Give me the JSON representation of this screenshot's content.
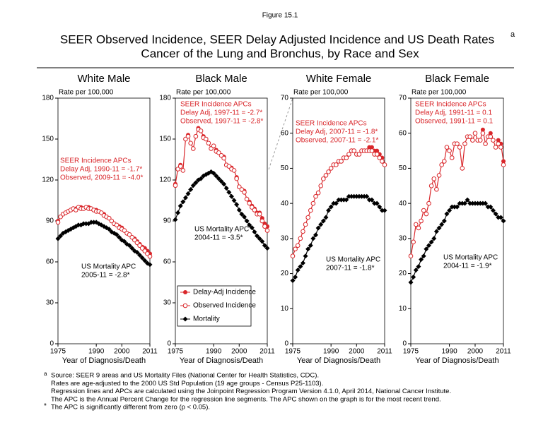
{
  "figure_label": "Figure 15.1",
  "title": {
    "line1": "SEER Observed Incidence, SEER Delay Adjusted Incidence and US Death Rates",
    "superscript": "a",
    "line2": "Cancer of the Lung and Bronchus, by Race and Sex"
  },
  "footnotes": [
    {
      "marker": "a",
      "lines": [
        "Source: SEER 9 areas and US Mortality Files (National Center for Health Statistics, CDC).",
        "Rates are age-adjusted to the 2000 US Std Population (19 age groups - Census P25-1103).",
        "Regression lines and APCs are calculated using the Joinpoint Regression Program Version 4.1.0, April 2014, National Cancer Institute.",
        "The APC is the Annual Percent Change for the regression line segments. The APC shown on the graph is for the most recent trend."
      ]
    },
    {
      "marker": "*",
      "lines": [
        "The APC is significantly different from zero (p < 0.05)."
      ]
    }
  ],
  "chart_data": [
    {
      "type": "line",
      "title": "White Male",
      "ylabel": "Rate per 100,000",
      "xlabel": "Year of Diagnosis/Death",
      "x": [
        1975,
        1976,
        1977,
        1978,
        1979,
        1980,
        1981,
        1982,
        1983,
        1984,
        1985,
        1986,
        1987,
        1988,
        1989,
        1990,
        1991,
        1992,
        1993,
        1994,
        1995,
        1996,
        1997,
        1998,
        1999,
        2000,
        2001,
        2002,
        2003,
        2004,
        2005,
        2006,
        2007,
        2008,
        2009,
        2010,
        2011
      ],
      "xlim": [
        1975,
        2011
      ],
      "xticks": [
        1975,
        1990,
        2000,
        2011
      ],
      "ylim": [
        0,
        180
      ],
      "yticks": [
        0,
        30,
        60,
        90,
        120,
        150,
        180
      ],
      "series": [
        {
          "name": "Delay-Adj Incidence",
          "color": "#d9262a",
          "marker": "filled-circle",
          "line": true,
          "values": [
            90,
            93,
            95,
            96,
            97,
            98,
            99,
            99,
            100,
            100,
            99,
            100,
            100,
            99,
            98,
            98,
            97,
            96,
            95,
            93,
            92,
            90,
            88,
            87,
            86,
            85,
            83,
            81,
            80,
            78,
            77,
            75,
            73,
            71,
            70,
            68,
            66
          ]
        },
        {
          "name": "Observed Incidence",
          "color": "#d9262a",
          "marker": "open-circle",
          "line": false,
          "values": [
            89,
            93,
            95,
            96,
            97,
            98,
            99,
            98,
            100,
            99,
            99,
            100,
            99,
            99,
            98,
            97,
            97,
            96,
            94,
            93,
            92,
            90,
            88,
            87,
            85,
            84,
            83,
            81,
            80,
            78,
            76,
            74,
            72,
            70,
            68,
            66,
            64
          ]
        },
        {
          "name": "Mortality",
          "color": "#000000",
          "marker": "diamond",
          "line": true,
          "values": [
            77,
            79,
            81,
            82,
            83,
            84,
            85,
            86,
            87,
            87,
            88,
            88,
            88,
            89,
            89,
            89,
            88,
            87,
            86,
            85,
            84,
            82,
            81,
            80,
            78,
            76,
            75,
            73,
            72,
            70,
            68,
            67,
            65,
            63,
            61,
            59,
            58
          ]
        }
      ],
      "incidence_note": [
        "SEER Incidence APCs",
        "Delay Adj, 1990-11 = -1.7*",
        "Observed, 2009-11 = -4.0*"
      ],
      "mortality_note": [
        "US Mortality APC",
        "2005-11 = -2.8*"
      ]
    },
    {
      "type": "line",
      "title": "Black Male",
      "ylabel": "Rate per 100,000",
      "xlabel": "Year of Diagnosis/Death",
      "x": [
        1975,
        1976,
        1977,
        1978,
        1979,
        1980,
        1981,
        1982,
        1983,
        1984,
        1985,
        1986,
        1987,
        1988,
        1989,
        1990,
        1991,
        1992,
        1993,
        1994,
        1995,
        1996,
        1997,
        1998,
        1999,
        2000,
        2001,
        2002,
        2003,
        2004,
        2005,
        2006,
        2007,
        2008,
        2009,
        2010,
        2011
      ],
      "xlim": [
        1975,
        2011
      ],
      "xticks": [
        1975,
        1990,
        2000,
        2011
      ],
      "ylim": [
        0,
        180
      ],
      "yticks": [
        0,
        30,
        60,
        90,
        120,
        150,
        180
      ],
      "legend": "lower-left",
      "series": [
        {
          "name": "Delay-Adj Incidence",
          "color": "#d9262a",
          "marker": "filled-circle",
          "line": true,
          "values": [
            117,
            128,
            131,
            127,
            150,
            153,
            147,
            143,
            152,
            158,
            156,
            152,
            150,
            147,
            143,
            145,
            142,
            140,
            138,
            137,
            131,
            130,
            129,
            127,
            122,
            115,
            113,
            112,
            106,
            104,
            101,
            99,
            96,
            96,
            92,
            88,
            86
          ]
        },
        {
          "name": "Observed Incidence",
          "color": "#d9262a",
          "marker": "open-circle",
          "line": false,
          "values": [
            116,
            128,
            130,
            127,
            150,
            152,
            147,
            143,
            152,
            157,
            156,
            151,
            150,
            147,
            143,
            145,
            141,
            140,
            138,
            136,
            131,
            130,
            128,
            127,
            121,
            115,
            113,
            111,
            106,
            103,
            100,
            98,
            95,
            95,
            90,
            86,
            83
          ]
        },
        {
          "name": "Mortality",
          "color": "#000000",
          "marker": "diamond",
          "line": true,
          "values": [
            91,
            96,
            101,
            104,
            107,
            110,
            113,
            116,
            118,
            120,
            121,
            123,
            124,
            125,
            126,
            125,
            123,
            121,
            119,
            117,
            114,
            111,
            108,
            105,
            102,
            98,
            95,
            93,
            90,
            87,
            85,
            82,
            79,
            77,
            75,
            72,
            70
          ]
        }
      ],
      "incidence_note": [
        "SEER Incidence APCs",
        "Delay Adj, 1997-11 = -2.7*",
        "Observed, 1997-11 = -2.8*"
      ],
      "mortality_note": [
        "US Mortality APC",
        "2004-11 = -3.5*"
      ]
    },
    {
      "type": "line",
      "title": "White Female",
      "ylabel": "Rate per 100,000",
      "xlabel": "Year of Diagnosis/Death",
      "x": [
        1975,
        1976,
        1977,
        1978,
        1979,
        1980,
        1981,
        1982,
        1983,
        1984,
        1985,
        1986,
        1987,
        1988,
        1989,
        1990,
        1991,
        1992,
        1993,
        1994,
        1995,
        1996,
        1997,
        1998,
        1999,
        2000,
        2001,
        2002,
        2003,
        2004,
        2005,
        2006,
        2007,
        2008,
        2009,
        2010,
        2011
      ],
      "xlim": [
        1975,
        2011
      ],
      "xticks": [
        1975,
        1990,
        2000,
        2011
      ],
      "ylim": [
        0,
        70
      ],
      "yticks": [
        0,
        10,
        20,
        30,
        40,
        50,
        60,
        70
      ],
      "series": [
        {
          "name": "Delay-Adj Incidence",
          "color": "#d9262a",
          "marker": "filled-circle",
          "line": true,
          "values": [
            25,
            27,
            28,
            30,
            32,
            34,
            36,
            38,
            40,
            42,
            43,
            45,
            47,
            48,
            49,
            50,
            51,
            51,
            52,
            52,
            53,
            53,
            54,
            55,
            55,
            54,
            54,
            55,
            55,
            55,
            56,
            56,
            55,
            55,
            54,
            53,
            51
          ]
        },
        {
          "name": "Observed Incidence",
          "color": "#d9262a",
          "marker": "open-circle",
          "line": false,
          "values": [
            25,
            27,
            28,
            30,
            32,
            34,
            36,
            38,
            40,
            42,
            43,
            45,
            47,
            48,
            49,
            50,
            51,
            51,
            52,
            52,
            53,
            53,
            54,
            55,
            55,
            54,
            54,
            55,
            55,
            55,
            55,
            55,
            54,
            54,
            53,
            52,
            51
          ]
        },
        {
          "name": "Mortality",
          "color": "#000000",
          "marker": "diamond",
          "line": true,
          "values": [
            18,
            19,
            21,
            22,
            23,
            25,
            27,
            28,
            30,
            31,
            33,
            34,
            35,
            36,
            38,
            39,
            40,
            40,
            41,
            41,
            41,
            41,
            42,
            42,
            42,
            42,
            42,
            42,
            42,
            42,
            41,
            41,
            40,
            40,
            39,
            38,
            38
          ]
        }
      ],
      "incidence_note": [
        "SEER Incidence APCs",
        "Delay Adj, 2007-11 = -1.8*",
        "Observed, 2007-11 = -2.1*"
      ],
      "mortality_note": [
        "US Mortality APC",
        "2007-11 = -1.8*"
      ]
    },
    {
      "type": "line",
      "title": "Black Female",
      "ylabel": "Rate per 100,000",
      "xlabel": "Year of Diagnosis/Death",
      "x": [
        1975,
        1976,
        1977,
        1978,
        1979,
        1980,
        1981,
        1982,
        1983,
        1984,
        1985,
        1986,
        1987,
        1988,
        1989,
        1990,
        1991,
        1992,
        1993,
        1994,
        1995,
        1996,
        1997,
        1998,
        1999,
        2000,
        2001,
        2002,
        2003,
        2004,
        2005,
        2006,
        2007,
        2008,
        2009,
        2010,
        2011
      ],
      "xlim": [
        1975,
        2011
      ],
      "xticks": [
        1975,
        1990,
        2000,
        2011
      ],
      "ylim": [
        0,
        70
      ],
      "yticks": [
        0,
        10,
        20,
        30,
        40,
        50,
        60,
        70
      ],
      "series": [
        {
          "name": "Delay-Adj Incidence",
          "color": "#d9262a",
          "marker": "filled-circle",
          "line": true,
          "values": [
            25,
            29,
            34,
            33,
            35,
            38,
            37,
            40,
            45,
            47,
            44,
            48,
            51,
            52,
            56,
            55,
            53,
            57,
            57,
            56,
            50,
            57,
            59,
            59,
            58,
            60,
            58,
            58,
            61,
            57,
            59,
            60,
            58,
            56,
            58,
            57,
            52
          ]
        },
        {
          "name": "Observed Incidence",
          "color": "#d9262a",
          "marker": "open-circle",
          "line": false,
          "values": [
            25,
            29,
            34,
            33,
            35,
            38,
            37,
            40,
            45,
            47,
            44,
            48,
            51,
            52,
            56,
            55,
            53,
            57,
            57,
            56,
            50,
            57,
            59,
            59,
            58,
            60,
            58,
            58,
            60,
            57,
            59,
            59,
            58,
            56,
            57,
            56,
            51
          ]
        },
        {
          "name": "Mortality",
          "color": "#000000",
          "marker": "diamond",
          "line": true,
          "values": [
            17.5,
            19,
            21,
            22,
            24,
            25,
            27,
            28,
            29,
            30,
            32,
            33,
            34,
            35,
            37,
            38,
            39,
            39,
            39,
            40,
            40,
            40,
            41,
            40,
            40,
            40,
            40,
            40,
            40,
            40,
            39,
            39,
            38,
            37,
            36,
            36,
            35
          ]
        }
      ],
      "incidence_note": [
        "SEER Incidence APCs",
        "Delay Adj, 1991-11 = 0.1",
        "Observed, 1991-11 = 0.1"
      ],
      "mortality_note": [
        "US Mortality APC",
        "2004-11 = -1.9*"
      ]
    }
  ]
}
